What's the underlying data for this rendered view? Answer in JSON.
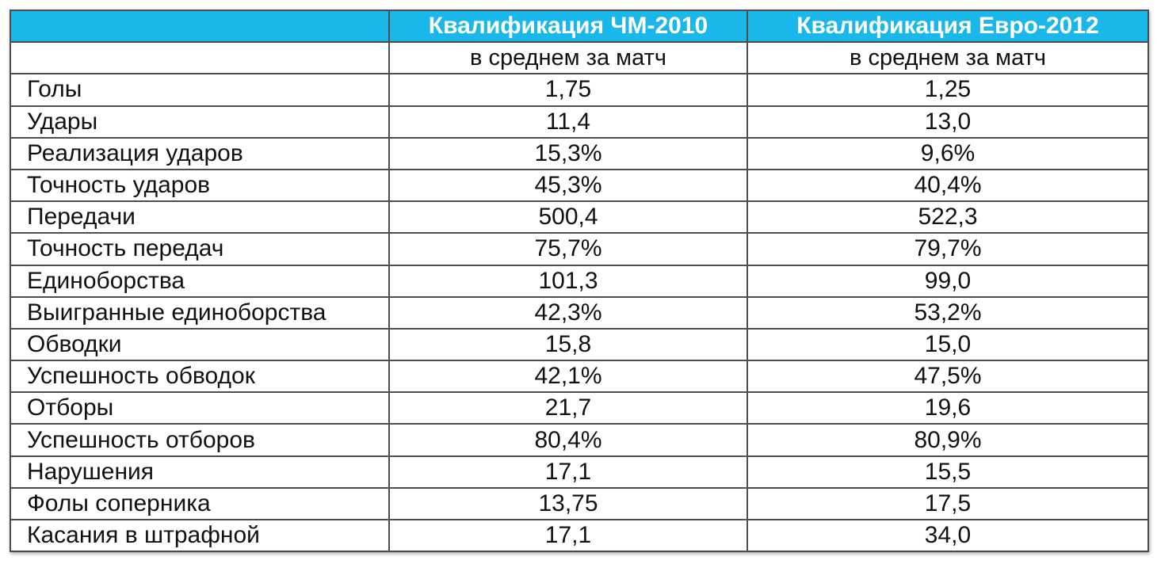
{
  "table": {
    "header": {
      "label": "",
      "col_a": "Квалификация ЧМ-2010",
      "col_b": "Квалификация Евро-2012"
    },
    "subheader": {
      "label": "",
      "col_a": "в среднем за матч",
      "col_b": "в среднем за матч"
    },
    "rows": [
      {
        "label": "Голы",
        "a": "1,75",
        "b": "1,25"
      },
      {
        "label": "Удары",
        "a": "11,4",
        "b": "13,0"
      },
      {
        "label": "Реализация ударов",
        "a": "15,3%",
        "b": "9,6%"
      },
      {
        "label": "Точность ударов",
        "a": "45,3%",
        "b": "40,4%"
      },
      {
        "label": "Передачи",
        "a": "500,4",
        "b": "522,3"
      },
      {
        "label": "Точность передач",
        "a": "75,7%",
        "b": "79,7%"
      },
      {
        "label": "Единоборства",
        "a": "101,3",
        "b": "99,0"
      },
      {
        "label": "Выигранные единоборства",
        "a": "42,3%",
        "b": "53,2%"
      },
      {
        "label": "Обводки",
        "a": "15,8",
        "b": "15,0"
      },
      {
        "label": "Успешность обводок",
        "a": "42,1%",
        "b": "47,5%"
      },
      {
        "label": "Отборы",
        "a": "21,7",
        "b": "19,6"
      },
      {
        "label": "Успешность отборов",
        "a": "80,4%",
        "b": "80,9%"
      },
      {
        "label": "Нарушения",
        "a": "17,1",
        "b": "15,5"
      },
      {
        "label": "Фолы соперника",
        "a": "13,75",
        "b": "17,5"
      },
      {
        "label": "Касания в штрафной",
        "a": "17,1",
        "b": "34,0"
      }
    ]
  },
  "colors": {
    "header_background": "#1ab8ea",
    "header_text": "#ffffff",
    "border": "#4d4d4d",
    "body_text": "#111111"
  }
}
